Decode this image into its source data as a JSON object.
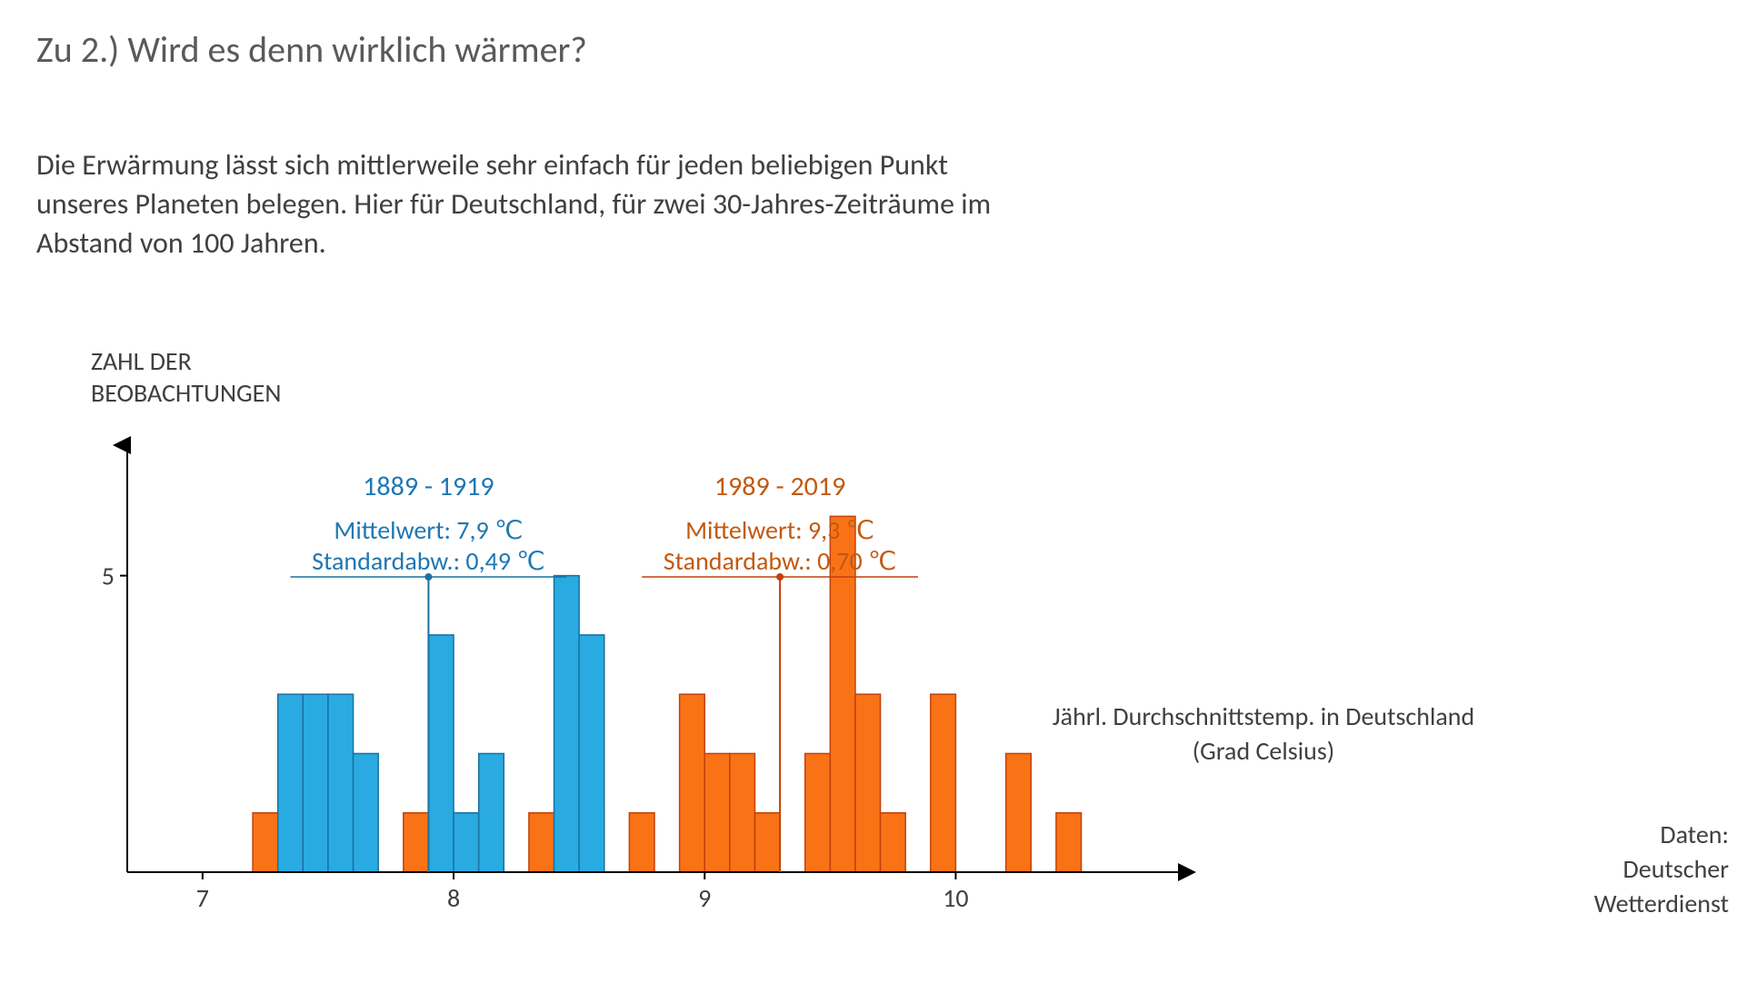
{
  "title": "Zu 2.) Wird es denn wirklich wärmer?",
  "subtitle": "Die Erwärmung lässt sich mittlerweile sehr einfach für jeden beliebigen Punkt unseres Planeten belegen. Hier für Deutschland, für zwei 30-Jahres-Zeiträume im Abstand von 100 Jahren.",
  "y_axis_title": "ZAHL DER\nBEOBACHTUNGEN",
  "x_axis_title": "Jährl. Durchschnittstemp. in Deutschland (Grad Celsius)",
  "data_source": "Daten:\nDeutscher\nWetterdienst",
  "chart": {
    "type": "histogram",
    "background_color": "#ffffff",
    "axis_color": "#000000",
    "axis_width": 2,
    "x_axis": {
      "min": 6.7,
      "max": 10.9,
      "ticks": [
        7,
        8,
        9,
        10
      ],
      "tick_fontsize": 28
    },
    "y_axis": {
      "min": 0,
      "max": 7.2,
      "ticks": [
        5
      ],
      "tick_fontsize": 28
    },
    "bin_width": 0.1,
    "series_blue": {
      "label_period": "1889 - 1919",
      "label_mean": "Mittelwert: 7,9 ℃",
      "label_std": "Standardabw.: 0,49 ℃",
      "label_color": "#1f77b4",
      "fill_color": "#29abe2",
      "stroke_color": "#1b70a0",
      "mean_x": 7.9,
      "bars": [
        {
          "x": 7.3,
          "y": 3
        },
        {
          "x": 7.4,
          "y": 3
        },
        {
          "x": 7.5,
          "y": 3
        },
        {
          "x": 7.6,
          "y": 2
        },
        {
          "x": 7.9,
          "y": 4
        },
        {
          "x": 8.0,
          "y": 1
        },
        {
          "x": 8.1,
          "y": 2
        },
        {
          "x": 8.4,
          "y": 5
        },
        {
          "x": 8.5,
          "y": 4
        }
      ]
    },
    "series_orange": {
      "label_period": "1989 - 2019",
      "label_mean": "Mittelwert: 9,3 ℃",
      "label_std": "Standardabw.: 0,70 ℃",
      "label_color": "#c15a11",
      "fill_color": "#f97316",
      "stroke_color": "#c2410c",
      "mean_x": 9.3,
      "bars": [
        {
          "x": 7.2,
          "y": 1
        },
        {
          "x": 7.8,
          "y": 1
        },
        {
          "x": 8.3,
          "y": 1
        },
        {
          "x": 8.5,
          "y": 1
        },
        {
          "x": 8.7,
          "y": 1
        },
        {
          "x": 8.9,
          "y": 3
        },
        {
          "x": 9.0,
          "y": 2
        },
        {
          "x": 9.1,
          "y": 2
        },
        {
          "x": 9.2,
          "y": 1
        },
        {
          "x": 9.4,
          "y": 2
        },
        {
          "x": 9.5,
          "y": 6
        },
        {
          "x": 9.6,
          "y": 3
        },
        {
          "x": 9.7,
          "y": 1
        },
        {
          "x": 9.9,
          "y": 3
        },
        {
          "x": 10.2,
          "y": 2
        },
        {
          "x": 10.4,
          "y": 1
        }
      ]
    },
    "label_fontsize": 30,
    "sublabel_fontsize": 28
  }
}
